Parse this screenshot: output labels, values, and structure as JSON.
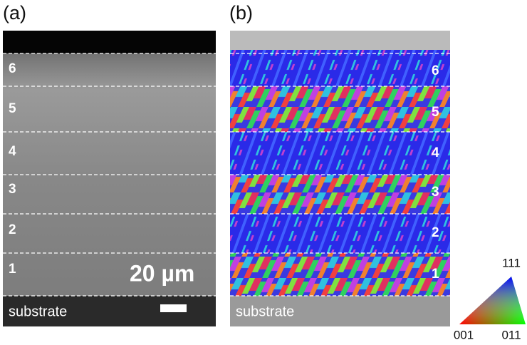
{
  "panels": [
    {
      "label": "(a)",
      "layers": [
        "1",
        "2",
        "3",
        "4",
        "5",
        "6"
      ],
      "substrate": "substrate",
      "scale_bar": "20 µm"
    },
    {
      "label": "(b)",
      "layers": [
        "1",
        "2",
        "3",
        "4",
        "5",
        "6"
      ],
      "substrate": "substrate"
    }
  ],
  "legend": {
    "top": "111",
    "left": "001",
    "right": "011"
  }
}
